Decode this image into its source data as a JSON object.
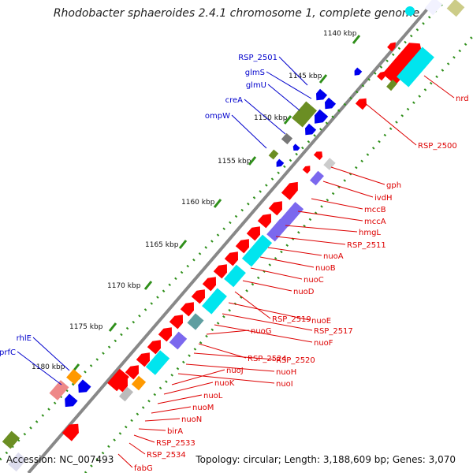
{
  "title": "Rhodobacter sphaeroides 2.4.1 chromosome 1, complete genome",
  "footer": {
    "accession": "Accession: NC_007493",
    "topology": "Topology: circular; Length: 3,188,609 bp; Genes: 3,070"
  },
  "colors": {
    "backbone": "#888888",
    "tick": "#2f8f1a",
    "forward_gene": "#ff0000",
    "reverse_gene": "#0000ee",
    "rna": "#6b8e23",
    "label_forward": "#dd0000",
    "label_reverse": "#0000cc",
    "cds_cyan": "#00e5ee",
    "cds_purple": "#7b68ee"
  },
  "kbp_labels": [
    "1140 kbp",
    "1145 kbp",
    "1150 kbp",
    "1155 kbp",
    "1160 kbp",
    "1165 kbp",
    "1170 kbp",
    "1175 kbp",
    "1180 kbp"
  ],
  "genes_left": [
    "RSP_2501",
    "glmS",
    "glmU",
    "creA",
    "ompW",
    "rhlE",
    "prfC"
  ],
  "genes_right": [
    "nrd",
    "RSP_2500",
    "gph",
    "ivdH",
    "mccB",
    "mccA",
    "hmgL",
    "RSP_2511",
    "nuoA",
    "nuoB",
    "nuoC",
    "nuoD",
    "RSP_2519",
    "nuoE",
    "RSP_2517",
    "nuoF",
    "nuoG",
    "RSP_2524",
    "RSP_2520",
    "nuoH",
    "nuoI",
    "nuoJ",
    "nuoK",
    "nuoL",
    "nuoM",
    "nuoN",
    "birA",
    "RSP_2533",
    "RSP_2534",
    "fabG"
  ]
}
